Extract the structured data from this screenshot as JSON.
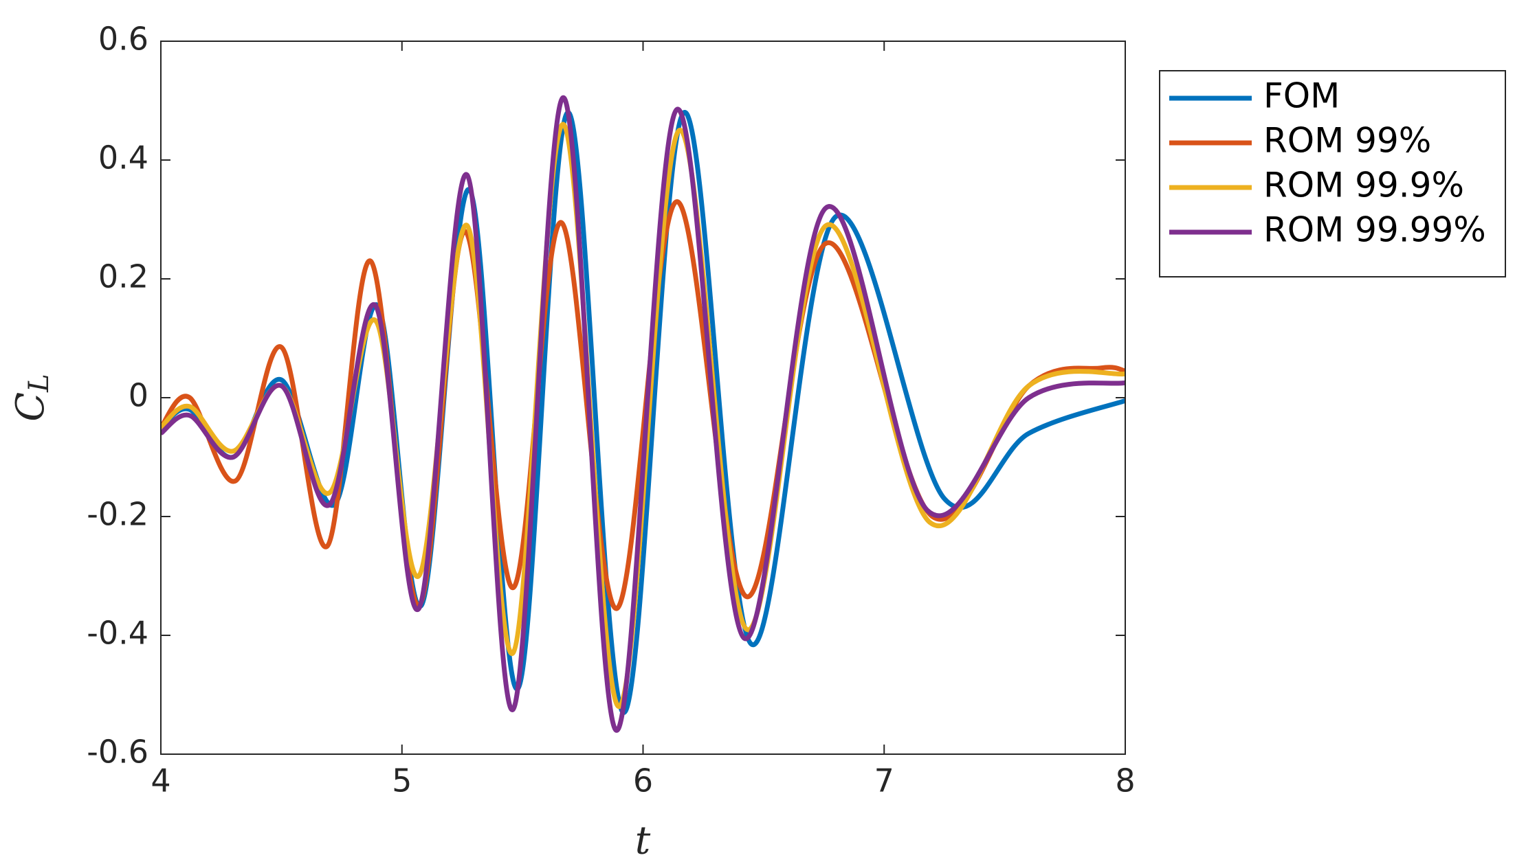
{
  "chart_data": {
    "type": "line",
    "xlabel": "t",
    "ylabel": [
      "C",
      "L"
    ],
    "xlim": [
      4,
      8
    ],
    "ylim": [
      -0.6,
      0.6
    ],
    "xticks": [
      4,
      5,
      6,
      7,
      8
    ],
    "yticks": [
      -0.6,
      -0.4,
      -0.2,
      0,
      0.2,
      0.4,
      0.6
    ],
    "grid": false,
    "legend": "outside-right",
    "series": [
      {
        "name": "FOM",
        "color": "#0072BD",
        "x": [
          4,
          4.12,
          4.3,
          4.5,
          4.72,
          4.9,
          5.08,
          5.28,
          5.48,
          5.69,
          5.92,
          6.17,
          6.45,
          6.8,
          7.25,
          7.6,
          8
        ],
        "values": [
          -0.05,
          -0.02,
          -0.1,
          0.03,
          -0.18,
          0.155,
          -0.35,
          0.35,
          -0.49,
          0.48,
          -0.53,
          0.48,
          -0.415,
          0.305,
          -0.17,
          -0.06,
          -0.005
        ]
      },
      {
        "name": "ROM 99%",
        "color": "#D95319",
        "x": [
          4,
          4.12,
          4.31,
          4.5,
          4.69,
          4.87,
          5.07,
          5.26,
          5.46,
          5.66,
          5.89,
          6.14,
          6.43,
          6.76,
          7.2,
          7.6,
          7.9,
          8
        ],
        "values": [
          -0.05,
          0.0,
          -0.14,
          0.085,
          -0.25,
          0.23,
          -0.35,
          0.28,
          -0.32,
          0.295,
          -0.355,
          0.33,
          -0.335,
          0.26,
          -0.2,
          0.02,
          0.05,
          0.045
        ]
      },
      {
        "name": "ROM 99.9%",
        "color": "#EDB120",
        "x": [
          4,
          4.12,
          4.3,
          4.5,
          4.7,
          4.89,
          5.07,
          5.27,
          5.46,
          5.67,
          5.9,
          6.15,
          6.43,
          6.76,
          7.19,
          7.6,
          8
        ],
        "values": [
          -0.05,
          -0.015,
          -0.09,
          0.02,
          -0.16,
          0.13,
          -0.3,
          0.29,
          -0.43,
          0.46,
          -0.52,
          0.45,
          -0.39,
          0.29,
          -0.21,
          0.02,
          0.04
        ]
      },
      {
        "name": "ROM 99.99%",
        "color": "#7E2F8E",
        "x": [
          4,
          4.12,
          4.3,
          4.5,
          4.7,
          4.89,
          5.07,
          5.27,
          5.46,
          5.67,
          5.89,
          6.14,
          6.42,
          6.76,
          7.18,
          7.6,
          8
        ],
        "values": [
          -0.06,
          -0.03,
          -0.1,
          0.02,
          -0.18,
          0.155,
          -0.355,
          0.375,
          -0.525,
          0.505,
          -0.56,
          0.485,
          -0.405,
          0.32,
          -0.19,
          0.0,
          0.025
        ]
      }
    ]
  }
}
